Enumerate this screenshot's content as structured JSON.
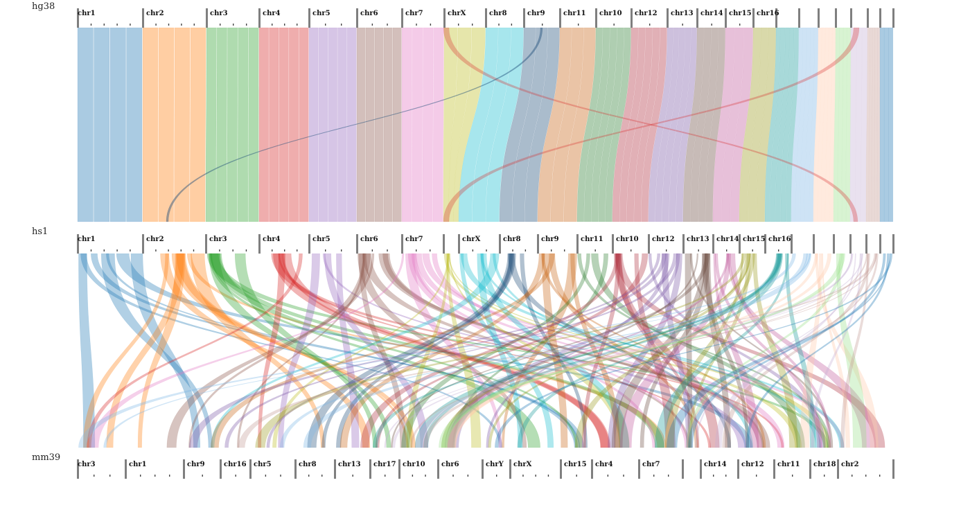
{
  "genomes": [
    {
      "name": "hg38",
      "chromosomes": [
        "chr1",
        "chr2",
        "chr3",
        "chr4",
        "chr5",
        "chr6",
        "chr7",
        "chrX",
        "chr8",
        "chr9",
        "chr11",
        "chr10",
        "chr12",
        "chr13",
        "chr14",
        "chr15",
        "chr16",
        "",
        "",
        "",
        "",
        "",
        "",
        "",
        ""
      ]
    },
    {
      "name": "hs1",
      "chromosomes": [
        "chr1",
        "chr2",
        "chr3",
        "chr4",
        "chr5",
        "chr6",
        "chr7",
        "",
        "chrX",
        "chr8",
        "chr9",
        "chr11",
        "chr10",
        "chr12",
        "chr13",
        "chr14",
        "chr15",
        "chr16",
        "",
        "",
        "",
        "",
        "",
        "",
        ""
      ]
    },
    {
      "name": "mm39",
      "chromosomes": [
        "chr3",
        "chr1",
        "chr9",
        "chr16",
        "chr5",
        "chr8",
        "chr13",
        "chr17",
        "chr10",
        "chr6",
        "chrY",
        "chrX",
        "chr15",
        "chr4",
        "chr7",
        "",
        "chr14",
        "chr12",
        "chr11",
        "chr18",
        "chr2"
      ]
    }
  ],
  "colors": {
    "palette": [
      "#1f77b4",
      "#ff7f0e",
      "#2ca02c",
      "#d62728",
      "#9467bd",
      "#8c564b",
      "#e377c2",
      "#bcbd22",
      "#17becf",
      "#1f4e79",
      "#c86414",
      "#2e7d32",
      "#b03040",
      "#7b5aa6",
      "#6d4c41",
      "#c05a9a",
      "#9a9a20",
      "#1a9a9a",
      "#7fb6e6",
      "#ffc9a8",
      "#98df8a",
      "#c5b0d5",
      "#c49c94"
    ],
    "ruler": "#7f7f7f",
    "text": "#111111"
  }
}
